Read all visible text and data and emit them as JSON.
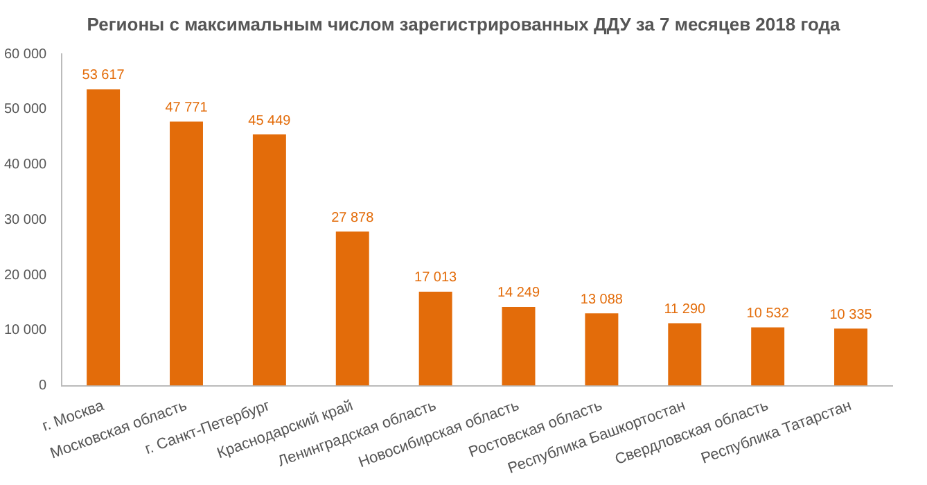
{
  "chart_data": {
    "type": "bar",
    "title": "Регионы с максимальным числом зарегистрированных ДДУ за 7 месяцев 2018 года",
    "categories": [
      "г. Москва",
      "Московская область",
      "г. Санкт-Петербург",
      "Краснодарский край",
      "Ленинградская область",
      "Новосибирская область",
      "Ростовская область",
      "Республика Башкортостан",
      "Свердловская область",
      "Республика Татарстан"
    ],
    "values": [
      53617,
      47771,
      45449,
      27878,
      17013,
      14249,
      13088,
      11290,
      10532,
      10335
    ],
    "value_labels": [
      "53 617",
      "47 771",
      "45 449",
      "27 878",
      "17 013",
      "14 249",
      "13 088",
      "11 290",
      "10 532",
      "10 335"
    ],
    "color": "#e36c0a",
    "ylim": [
      0,
      60000
    ],
    "yticks": [
      {
        "value": 0,
        "label": "0"
      },
      {
        "value": 10000,
        "label": "10 000"
      },
      {
        "value": 20000,
        "label": "20 000"
      },
      {
        "value": 30000,
        "label": "30 000"
      },
      {
        "value": 40000,
        "label": "40 000"
      },
      {
        "value": 50000,
        "label": "50 000"
      },
      {
        "value": 60000,
        "label": "60 000"
      }
    ],
    "grid": false,
    "legend": false
  }
}
